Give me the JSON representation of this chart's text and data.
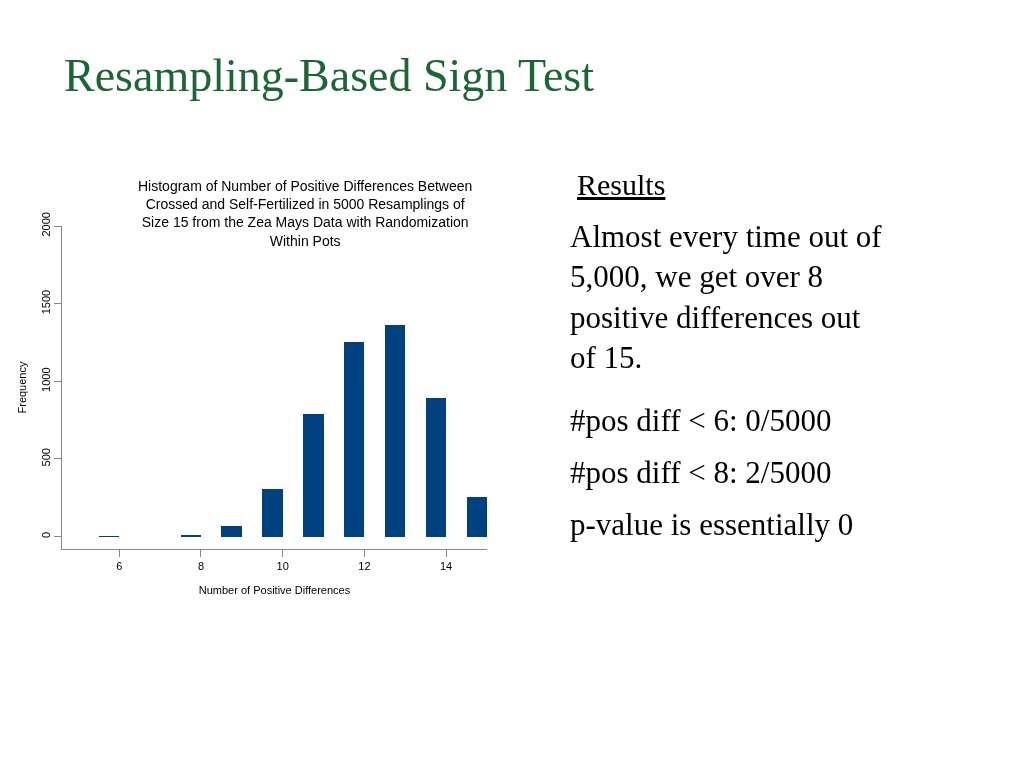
{
  "chart_data": {
    "type": "histogram",
    "title": "Resampling-Based Sign Test",
    "subtitle": "Histogram of Number of Positive Differences Between Crossed and Self-Fertilized in 5000 Resamplings of Size 15 from the Zea Mays Data with Randomization Within Pots",
    "xlabel": "Number of Positive Differences",
    "ylabel": "Frequency",
    "bins": [
      5.5,
      6,
      6.5,
      7,
      7.5,
      8,
      8.5,
      9,
      9.5,
      10,
      10.5,
      11,
      11.5,
      12,
      12.5,
      13,
      13.5,
      14,
      14.5,
      15
    ],
    "values": [
      2,
      0,
      0,
      0,
      13,
      0,
      71,
      0,
      307,
      0,
      787,
      0,
      1256,
      0,
      1365,
      0,
      894,
      0,
      257
    ],
    "color": "#00427f",
    "xlim": [
      4.6,
      15.0
    ],
    "xticks": [
      6,
      8,
      10,
      12,
      14
    ],
    "ylim": [
      -80,
      2000
    ],
    "yticks": [
      0,
      500,
      1000,
      1500,
      2000
    ],
    "annotations": [
      "Results",
      "Almost every time out of 5,000, we get over 8 positive differences out of 15.",
      "#pos diff < 6: 0/5000",
      "#pos diff < 8: 2/5000",
      "p-value is essentially 0"
    ]
  }
}
